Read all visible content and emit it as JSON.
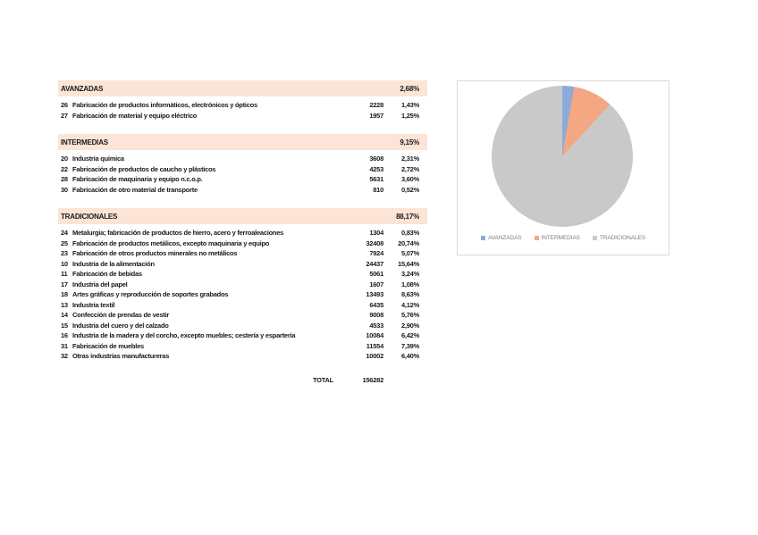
{
  "page": {
    "background": "#ffffff"
  },
  "colors": {
    "section_header_bg": "#FCE4D6",
    "chart_border": "#D9D9D9",
    "legend_text": "#7F7F7F",
    "text": "#1a1a1a"
  },
  "table": {
    "sections": [
      {
        "name": "AVANZADAS",
        "percent": "2,68%",
        "rows": [
          {
            "code": "26",
            "label": "Fabricación de productos informáticos, electrónicos y ópticos",
            "value": "2228",
            "percent": "1,43%"
          },
          {
            "code": "27",
            "label": "Fabricación de material y equipo eléctrico",
            "value": "1957",
            "percent": "1,25%"
          }
        ]
      },
      {
        "name": "INTERMEDIAS",
        "percent": "9,15%",
        "rows": [
          {
            "code": "20",
            "label": "Industria química",
            "value": "3608",
            "percent": "2,31%"
          },
          {
            "code": "22",
            "label": "Fabricación de productos de caucho y plásticos",
            "value": "4253",
            "percent": "2,72%"
          },
          {
            "code": "28",
            "label": "Fabricación de maquinaria y equipo n.c.o.p.",
            "value": "5631",
            "percent": "3,60%"
          },
          {
            "code": "30",
            "label": "Fabricación de otro material de transporte",
            "value": "810",
            "percent": "0,52%"
          }
        ]
      },
      {
        "name": "TRADICIONALES",
        "percent": "88,17%",
        "rows": [
          {
            "code": "24",
            "label": "Metalurgia; fabricación de productos de hierro, acero y ferroaleaciones",
            "value": "1304",
            "percent": "0,83%"
          },
          {
            "code": "25",
            "label": "Fabricación de productos metálicos, excepto maquinaria y equipo",
            "value": "32408",
            "percent": "20,74%"
          },
          {
            "code": "23",
            "label": "Fabricación de otros productos minerales no metálicos",
            "value": "7924",
            "percent": "5,07%"
          },
          {
            "code": "10",
            "label": "Industria de la alimentación",
            "value": "24437",
            "percent": "15,64%"
          },
          {
            "code": "11",
            "label": "Fabricación de bebidas",
            "value": "5061",
            "percent": "3,24%"
          },
          {
            "code": "17",
            "label": "Industria del papel",
            "value": "1607",
            "percent": "1,08%"
          },
          {
            "code": "18",
            "label": "Artes gráficas y reproducción de soportes grabados",
            "value": "13493",
            "percent": "8,63%"
          },
          {
            "code": "13",
            "label": "Industria textil",
            "value": "6435",
            "percent": "4,12%"
          },
          {
            "code": "14",
            "label": "Confección de prendas de vestir",
            "value": "9008",
            "percent": "5,76%"
          },
          {
            "code": "15",
            "label": "Industria del cuero y del calzado",
            "value": "4533",
            "percent": "2,90%"
          },
          {
            "code": "16",
            "label": "Industria de la madera y del corcho, excepto muebles; cestería y espartería",
            "value": "10084",
            "percent": "6,42%"
          },
          {
            "code": "31",
            "label": "Fabricación de muebles",
            "value": "11554",
            "percent": "7,39%"
          },
          {
            "code": "32",
            "label": "Otras industrias manufactureras",
            "value": "10002",
            "percent": "6,40%"
          }
        ]
      }
    ],
    "total": {
      "label": "TOTAL",
      "value": "156282"
    }
  },
  "chart_data": {
    "type": "pie",
    "title": "",
    "legend_position": "bottom",
    "start_angle_deg": 0,
    "slices": [
      {
        "label": "AVANZADAS",
        "value": 2.68,
        "color": "#8EAADB"
      },
      {
        "label": "INTERMEDIAS",
        "value": 9.15,
        "color": "#F4A782"
      },
      {
        "label": "TRADICIONALES",
        "value": 88.17,
        "color": "#C9C9C9"
      }
    ]
  }
}
